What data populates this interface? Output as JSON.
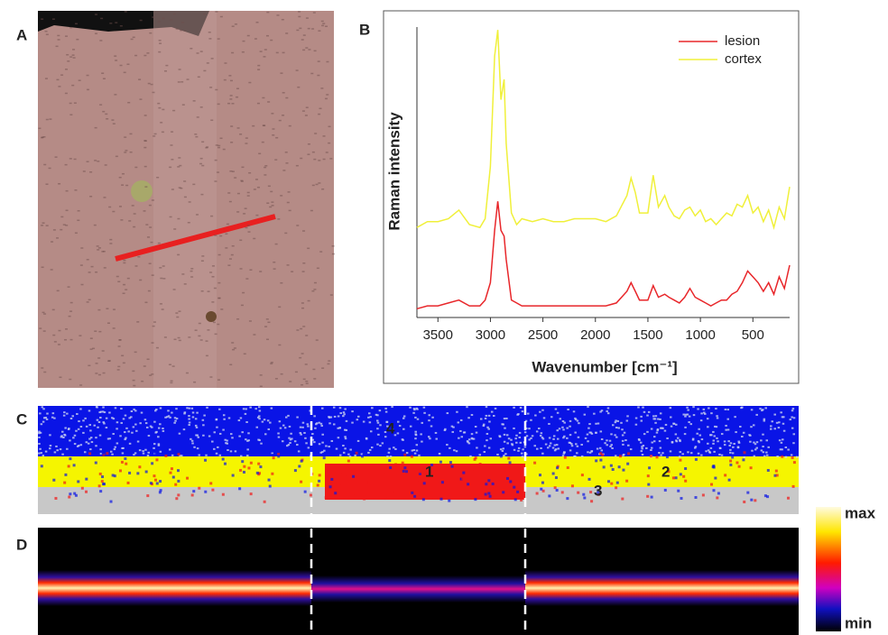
{
  "panel_labels": [
    "A",
    "B",
    "C",
    "D"
  ],
  "map_labels": [
    "1",
    "2",
    "3",
    "4"
  ],
  "colorbar": {
    "max": "max",
    "min": "min"
  },
  "chart_data": {
    "type": "line",
    "xlabel": "Wavenumber [cm⁻¹]",
    "ylabel": "Raman intensity",
    "x": [
      3700,
      3600,
      3500,
      3400,
      3300,
      3200,
      3100,
      3050,
      3000,
      2960,
      2930,
      2900,
      2870,
      2850,
      2800,
      2750,
      2700,
      2600,
      2500,
      2400,
      2300,
      2200,
      2100,
      2000,
      1900,
      1800,
      1700,
      1660,
      1620,
      1580,
      1500,
      1450,
      1400,
      1340,
      1300,
      1250,
      1200,
      1150,
      1100,
      1050,
      1000,
      950,
      900,
      850,
      800,
      750,
      700,
      650,
      600,
      550,
      500,
      450,
      400,
      350,
      300,
      250,
      200,
      150
    ],
    "series": [
      {
        "name": "lesion",
        "color": "#e8262a",
        "values": [
          3,
          4,
          4,
          5,
          6,
          4,
          4,
          6,
          12,
          30,
          40,
          30,
          28,
          20,
          6,
          5,
          4,
          4,
          4,
          4,
          4,
          4,
          4,
          4,
          4,
          5,
          9,
          12,
          9,
          6,
          6,
          11,
          7,
          8,
          7,
          6,
          5,
          7,
          10,
          7,
          6,
          5,
          4,
          5,
          6,
          6,
          8,
          9,
          12,
          16,
          14,
          12,
          9,
          12,
          8,
          14,
          10,
          18
        ]
      },
      {
        "name": "cortex",
        "color": "#f0f03a",
        "values": [
          31,
          33,
          33,
          34,
          37,
          32,
          31,
          34,
          52,
          90,
          99,
          75,
          82,
          60,
          36,
          32,
          34,
          33,
          34,
          33,
          33,
          34,
          34,
          34,
          33,
          35,
          42,
          48,
          43,
          36,
          36,
          49,
          38,
          42,
          38,
          35,
          34,
          37,
          38,
          35,
          37,
          33,
          34,
          32,
          34,
          36,
          35,
          39,
          38,
          42,
          36,
          38,
          33,
          37,
          31,
          38,
          34,
          45
        ]
      }
    ],
    "xlim": [
      3700,
      150
    ],
    "ylim": [
      0,
      100
    ],
    "xticks": [
      3500,
      3000,
      2500,
      2000,
      1500,
      1000,
      500
    ],
    "legend": "upper right"
  }
}
